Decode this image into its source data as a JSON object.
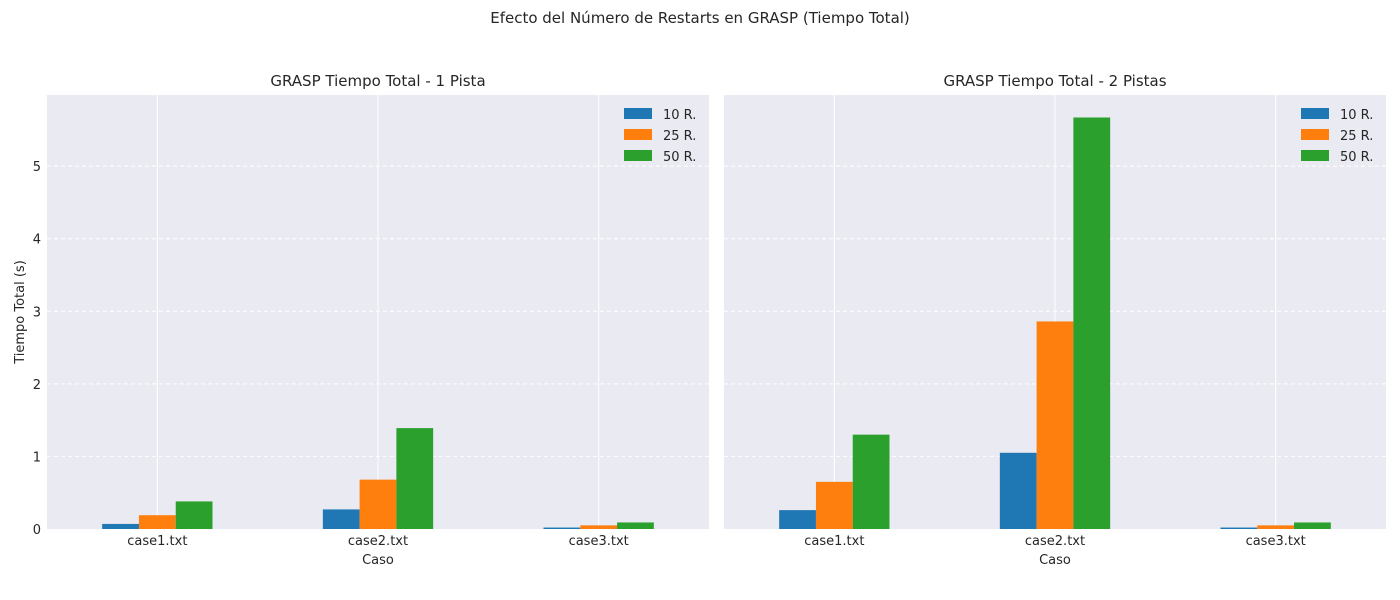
{
  "suptitle": "Efecto del Número de Restarts en GRASP (Tiempo Total)",
  "colors": {
    "10 R.": "#1f77b4",
    "25 R.": "#ff7f0e",
    "50 R.": "#2ca02c",
    "plot_bg": "#eaeaf2"
  },
  "chart_data": [
    {
      "type": "bar",
      "title": "GRASP Tiempo Total - 1 Pista",
      "xlabel": "Caso",
      "ylabel": "Tiempo Total (s)",
      "categories": [
        "case1.txt",
        "case2.txt",
        "case3.txt"
      ],
      "yticks": [
        0,
        1,
        2,
        3,
        4,
        5
      ],
      "ylim": [
        0,
        5.98
      ],
      "grid": true,
      "legend_position": "top-right",
      "series": [
        {
          "name": "10 R.",
          "color": "#1f77b4",
          "values": [
            0.07,
            0.27,
            0.02
          ]
        },
        {
          "name": "25 R.",
          "color": "#ff7f0e",
          "values": [
            0.19,
            0.68,
            0.05
          ]
        },
        {
          "name": "50 R.",
          "color": "#2ca02c",
          "values": [
            0.38,
            1.39,
            0.09
          ]
        }
      ]
    },
    {
      "type": "bar",
      "title": "GRASP Tiempo Total - 2 Pistas",
      "xlabel": "Caso",
      "ylabel": "",
      "categories": [
        "case1.txt",
        "case2.txt",
        "case3.txt"
      ],
      "yticks": [],
      "ylim": [
        0,
        5.98
      ],
      "grid": true,
      "legend_position": "top-right",
      "series": [
        {
          "name": "10 R.",
          "color": "#1f77b4",
          "values": [
            0.26,
            1.05,
            0.02
          ]
        },
        {
          "name": "25 R.",
          "color": "#ff7f0e",
          "values": [
            0.65,
            2.86,
            0.05
          ]
        },
        {
          "name": "50 R.",
          "color": "#2ca02c",
          "values": [
            1.3,
            5.67,
            0.09
          ]
        }
      ]
    }
  ]
}
